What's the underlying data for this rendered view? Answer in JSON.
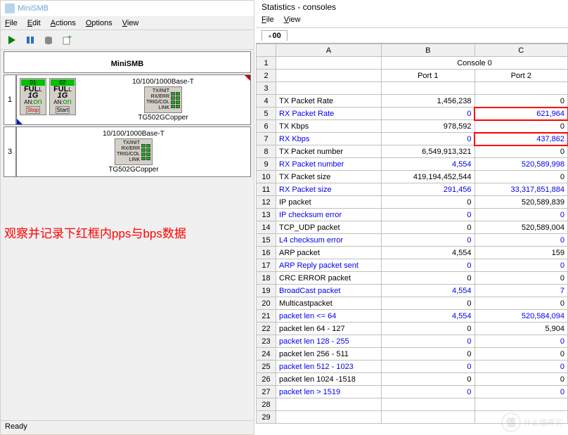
{
  "main": {
    "title": "MiniSMB",
    "menu": {
      "file": "File",
      "edit": "Edit",
      "actions": "Actions",
      "options": "Options",
      "view": "View"
    },
    "app_header": "MiniSMB",
    "status": "Ready",
    "slots": [
      {
        "num": "1",
        "ports": [
          {
            "id": "01",
            "lines": "FULL\n1G\nAN:on",
            "btn": "Stop",
            "btn_cls": "red"
          },
          {
            "id": "02",
            "lines": "FULL\n1G\nAN:on",
            "btn": "Start",
            "btn_cls": ""
          }
        ],
        "link_label": "10/100/1000Base-T",
        "link_txt": "TX/INIT\nRX/ERR\nTRIG/COL\nLINK",
        "link_desc": "TG502GCopper",
        "side_num": "2"
      },
      {
        "num": "3",
        "ports": [],
        "link_label": "10/100/1000Base-T",
        "link_txt": "TX/INIT\nRX/ERR\nTRIG/COL\nLINK",
        "link_desc": "TG502GCopper",
        "side_num": "4"
      }
    ]
  },
  "annotation": "观察并记录下红框内pps与bps数据",
  "stats": {
    "title": "Statistics - consoles",
    "menu": {
      "file": "File",
      "view": "View"
    },
    "tab": "00",
    "col_headers": [
      "",
      "A",
      "B",
      "C"
    ],
    "console_header": "Console 0",
    "port_headers": [
      "",
      "Port 1",
      "Port 2"
    ],
    "rows": [
      {
        "n": "1",
        "a": "",
        "b": "",
        "c": "",
        "blue": false,
        "merged": "console"
      },
      {
        "n": "2",
        "a": "",
        "b": "Port 1",
        "c": "Port 2",
        "blue": false,
        "center": true
      },
      {
        "n": "3",
        "a": "",
        "b": "",
        "c": "",
        "blue": false
      },
      {
        "n": "4",
        "a": "TX Packet Rate",
        "b": "1,456,238",
        "c": "0",
        "blue": false
      },
      {
        "n": "5",
        "a": "RX Packet Rate",
        "b": "0",
        "c": "621,964",
        "blue": true,
        "hl_c": true
      },
      {
        "n": "6",
        "a": "TX Kbps",
        "b": "978,592",
        "c": "0",
        "blue": false
      },
      {
        "n": "7",
        "a": "RX Kbps",
        "b": "0",
        "c": "437,862",
        "blue": true,
        "hl_c": true
      },
      {
        "n": "8",
        "a": "TX Packet number",
        "b": "6,549,913,321",
        "c": "0",
        "blue": false
      },
      {
        "n": "9",
        "a": "RX Packet number",
        "b": "4,554",
        "c": "520,589,998",
        "blue": true
      },
      {
        "n": "10",
        "a": "TX Packet size",
        "b": "419,194,452,544",
        "c": "0",
        "blue": false
      },
      {
        "n": "11",
        "a": "RX Packet size",
        "b": "291,456",
        "c": "33,317,851,884",
        "blue": true
      },
      {
        "n": "12",
        "a": "IP packet",
        "b": "0",
        "c": "520,589,839",
        "blue": false
      },
      {
        "n": "13",
        "a": "IP checksum error",
        "b": "0",
        "c": "0",
        "blue": true
      },
      {
        "n": "14",
        "a": "TCP_UDP packet",
        "b": "0",
        "c": "520,589,004",
        "blue": false
      },
      {
        "n": "15",
        "a": "L4 checksum error",
        "b": "0",
        "c": "0",
        "blue": true
      },
      {
        "n": "16",
        "a": "ARP packet",
        "b": "4,554",
        "c": "159",
        "blue": false
      },
      {
        "n": "17",
        "a": "ARP Reply packet sent",
        "b": "0",
        "c": "0",
        "blue": true
      },
      {
        "n": "18",
        "a": "CRC ERROR packet",
        "b": "0",
        "c": "0",
        "blue": false
      },
      {
        "n": "19",
        "a": "BroadCast packet",
        "b": "4,554",
        "c": "7",
        "blue": true
      },
      {
        "n": "20",
        "a": "Multicastpacket",
        "b": "0",
        "c": "0",
        "blue": false
      },
      {
        "n": "21",
        "a": "packet len <= 64",
        "b": "4,554",
        "c": "520,584,094",
        "blue": true
      },
      {
        "n": "22",
        "a": "packet len 64 - 127",
        "b": "0",
        "c": "5,904",
        "blue": false
      },
      {
        "n": "23",
        "a": "packet len 128 - 255",
        "b": "0",
        "c": "0",
        "blue": true
      },
      {
        "n": "24",
        "a": "packet len 256 - 511",
        "b": "0",
        "c": "0",
        "blue": false
      },
      {
        "n": "25",
        "a": "packet len 512 - 1023",
        "b": "0",
        "c": "0",
        "blue": true
      },
      {
        "n": "26",
        "a": "packet len 1024 -1518",
        "b": "0",
        "c": "0",
        "blue": false
      },
      {
        "n": "27",
        "a": "packet len > 1519",
        "b": "0",
        "c": "0",
        "blue": true
      },
      {
        "n": "28",
        "a": "",
        "b": "",
        "c": "",
        "blue": false
      },
      {
        "n": "29",
        "a": "",
        "b": "",
        "c": "",
        "blue": false
      }
    ]
  },
  "watermark": "什么值得买",
  "colors": {
    "blue_text": "#0000ee",
    "red_outline": "#ff0000",
    "grid_border": "#c0c0c0",
    "header_bg": "#f0f0f0",
    "led_green": "#00c000"
  }
}
